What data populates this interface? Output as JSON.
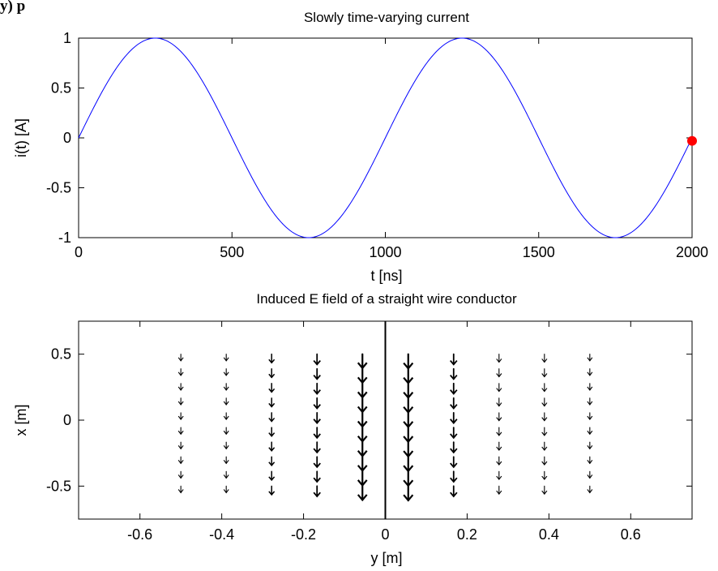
{
  "corner_label": "y) p",
  "chart_data": [
    {
      "type": "line",
      "title": "Slowly time-varying current",
      "xlabel": "t [ns]",
      "ylabel": "i(t) [A]",
      "xlim": [
        0,
        2000
      ],
      "ylim": [
        -1,
        1
      ],
      "xticks": [
        0,
        500,
        1000,
        1500,
        2000
      ],
      "xtick_labels": [
        "0",
        "500",
        "1000",
        "1500",
        "2000"
      ],
      "yticks": [
        1,
        0.5,
        0,
        -0.5,
        -1
      ],
      "ytick_labels": [
        "1",
        "0.5",
        "0",
        "-0.5",
        "-1"
      ],
      "grid": false,
      "series": [
        {
          "color": "#0000ff",
          "x": [
            0,
            50,
            100,
            150,
            200,
            250,
            300,
            350,
            400,
            450,
            500,
            550,
            600,
            650,
            700,
            750,
            800,
            850,
            900,
            950,
            1000,
            1050,
            1100,
            1150,
            1200,
            1250,
            1300,
            1350,
            1400,
            1450,
            1500,
            1550,
            1600,
            1650,
            1700,
            1750,
            1800,
            1850,
            1900,
            1950,
            2000
          ],
          "y": [
            0,
            0.309,
            0.588,
            0.809,
            0.951,
            1,
            0.951,
            0.809,
            0.588,
            0.309,
            0,
            -0.309,
            -0.588,
            -0.809,
            -0.951,
            -1,
            -0.951,
            -0.809,
            -0.588,
            -0.309,
            0,
            0.309,
            0.588,
            0.809,
            0.951,
            1,
            0.951,
            0.809,
            0.588,
            0.309,
            0,
            -0.309,
            -0.588,
            -0.809,
            -0.951,
            -1,
            -0.951,
            -0.809,
            -0.588,
            -0.309,
            0
          ]
        }
      ],
      "marker": {
        "x": 2000,
        "y": -0.03,
        "color": "#ff0000"
      }
    },
    {
      "type": "quiver",
      "title": "Induced E field of a straight wire conductor",
      "xlabel": "y [m]",
      "ylabel": "x [m]",
      "xlim": [
        -0.75,
        0.75
      ],
      "ylim": [
        -0.75,
        0.75
      ],
      "xticks": [
        -0.6,
        -0.4,
        -0.2,
        0,
        0.2,
        0.4,
        0.6
      ],
      "xtick_labels": [
        "-0.6",
        "-0.4",
        "-0.2",
        "0",
        "0.2",
        "0.4",
        "0.6"
      ],
      "yticks": [
        0.5,
        0,
        -0.5
      ],
      "ytick_labels": [
        "0.5",
        "0",
        "-0.5"
      ],
      "grid": false,
      "wire_position": 0,
      "arrow_color": "#000000",
      "column_y": [
        -0.5,
        -0.389,
        -0.278,
        -0.167,
        -0.056,
        0.056,
        0.167,
        0.278,
        0.389,
        0.5
      ],
      "row_x": [
        0.5,
        0.389,
        0.278,
        0.167,
        0.056,
        -0.056,
        -0.167,
        -0.278,
        -0.389,
        -0.5
      ],
      "arrow_magnitude_x": [
        0.05,
        0.05,
        0.065,
        0.078,
        0.105,
        0.108,
        0.078,
        0.06,
        0.06,
        0.05
      ]
    }
  ]
}
